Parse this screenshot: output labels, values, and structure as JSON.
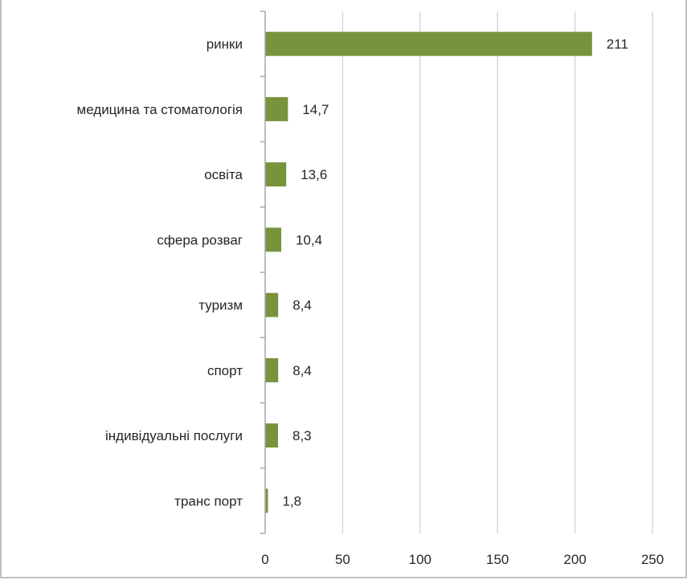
{
  "chart_data": {
    "type": "bar",
    "orientation": "horizontal",
    "categories": [
      "ринки",
      "медицина та стоматологія",
      "освіта",
      "сфера розваг",
      "туризм",
      "спорт",
      "індивідуальні послуги",
      "транс порт"
    ],
    "values": [
      211,
      14.7,
      13.6,
      10.4,
      8.4,
      8.4,
      8.3,
      1.8
    ],
    "value_labels": [
      "211",
      "14,7",
      "13,6",
      "10,4",
      "8,4",
      "8,4",
      "8,3",
      "1,8"
    ],
    "x_ticks": [
      "0",
      "50",
      "100",
      "150",
      "200",
      "250"
    ],
    "xlim": [
      0,
      250
    ],
    "grid": "vertical",
    "bar_color": "#77933c",
    "grid_color": "#d9d9d9",
    "axis_color": "#a6a6a6"
  }
}
